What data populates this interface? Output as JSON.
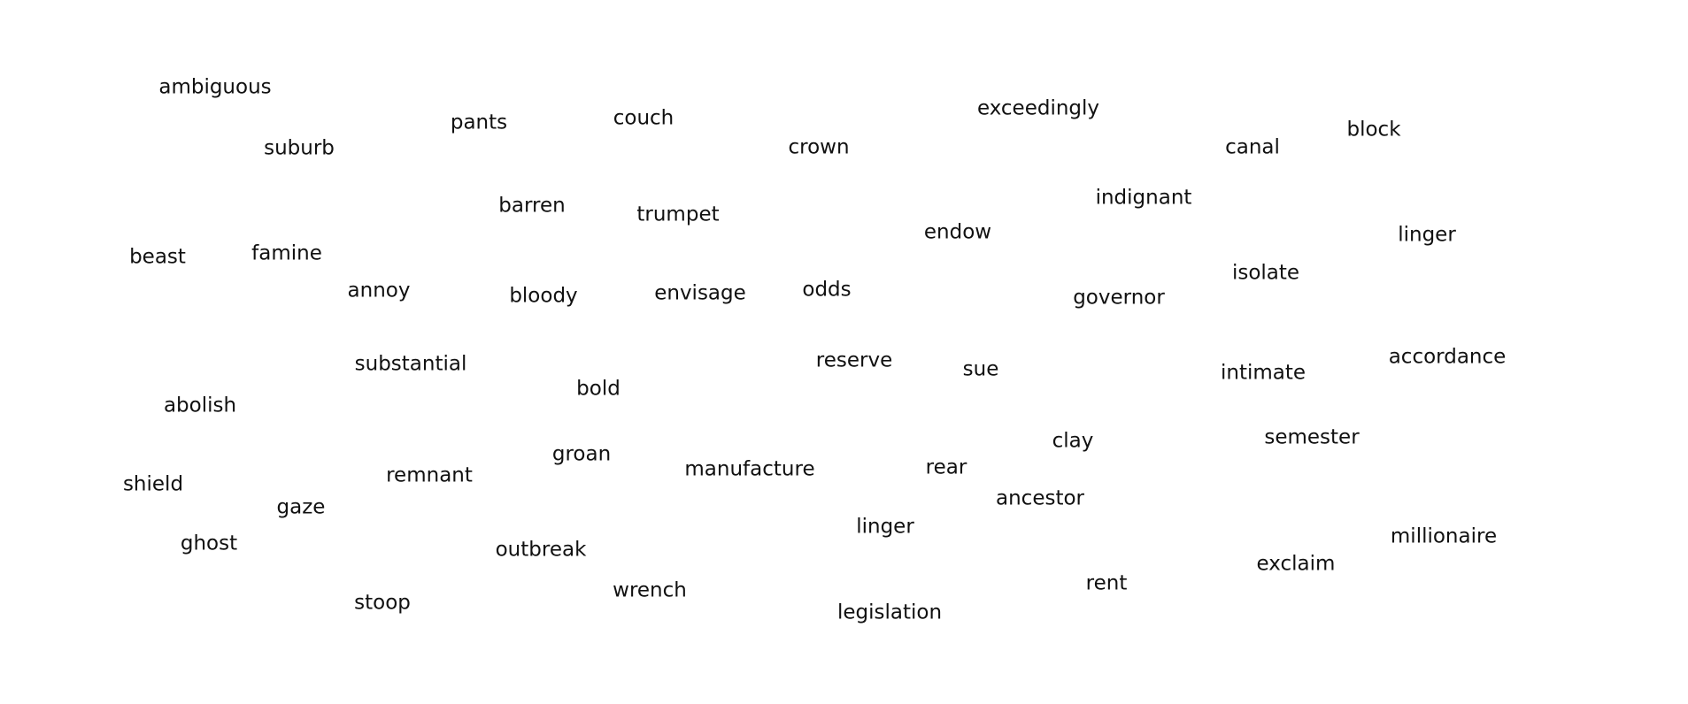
{
  "words": [
    "ambiguous",
    "pants",
    "couch",
    "exceedingly",
    "suburb",
    "crown",
    "canal",
    "block",
    "barren",
    "trumpet",
    "indignant",
    "endow",
    "linger",
    "beast",
    "famine",
    "isolate",
    "annoy",
    "bloody",
    "envisage",
    "odds",
    "governor",
    "substantial",
    "reserve",
    "sue",
    "intimate",
    "accordance",
    "bold",
    "abolish",
    "clay",
    "semester",
    "groan",
    "remnant",
    "manufacture",
    "rear",
    "shield",
    "gaze",
    "ancestor",
    "ghost",
    "linger",
    "outbreak",
    "millionaire",
    "exclaim",
    "rent",
    "wrench",
    "stoop",
    "legislation"
  ]
}
